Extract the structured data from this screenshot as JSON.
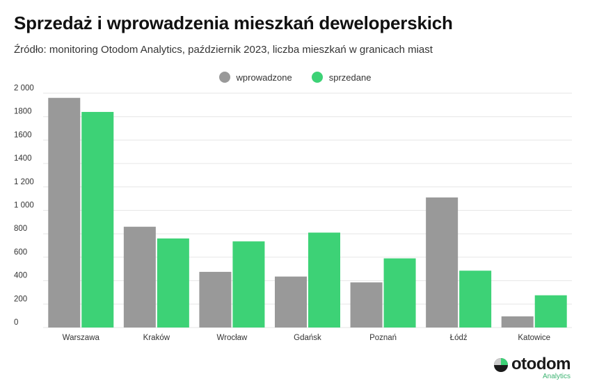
{
  "title": "Sprzedaż i wprowadzenia mieszkań deweloperskich",
  "subtitle": "Źródło: monitoring Otodom Analytics, październik 2023, liczba mieszkań w granicach miast",
  "legend": [
    {
      "name": "wprowadzone",
      "color": "#999999"
    },
    {
      "name": "sprzedane",
      "color": "#3dd276"
    }
  ],
  "logo": {
    "word": "otodom",
    "sub": "Analytics",
    "icon": "otodom-logo-icon"
  },
  "chart_data": {
    "type": "bar",
    "categories": [
      "Warszawa",
      "Kraków",
      "Wrocław",
      "Gdańsk",
      "Poznań",
      "Łódź",
      "Katowice"
    ],
    "series": [
      {
        "name": "wprowadzone",
        "values": [
          1960,
          860,
          475,
          435,
          385,
          1110,
          95
        ]
      },
      {
        "name": "sprzedane",
        "values": [
          1840,
          760,
          735,
          810,
          590,
          485,
          275
        ]
      }
    ],
    "yticks": [
      0,
      200,
      400,
      600,
      800,
      1000,
      1200,
      1400,
      1600,
      1800,
      2000
    ],
    "ytick_labels": [
      "0",
      "200",
      "400",
      "600",
      "800",
      "1 000",
      "1 200",
      "1400",
      "1600",
      "1800",
      "2 000"
    ],
    "ylim": [
      0,
      2000
    ],
    "grid": true,
    "legend_position": "top-center",
    "colors": {
      "wprowadzone": "#999999",
      "sprzedane": "#3dd276"
    }
  }
}
